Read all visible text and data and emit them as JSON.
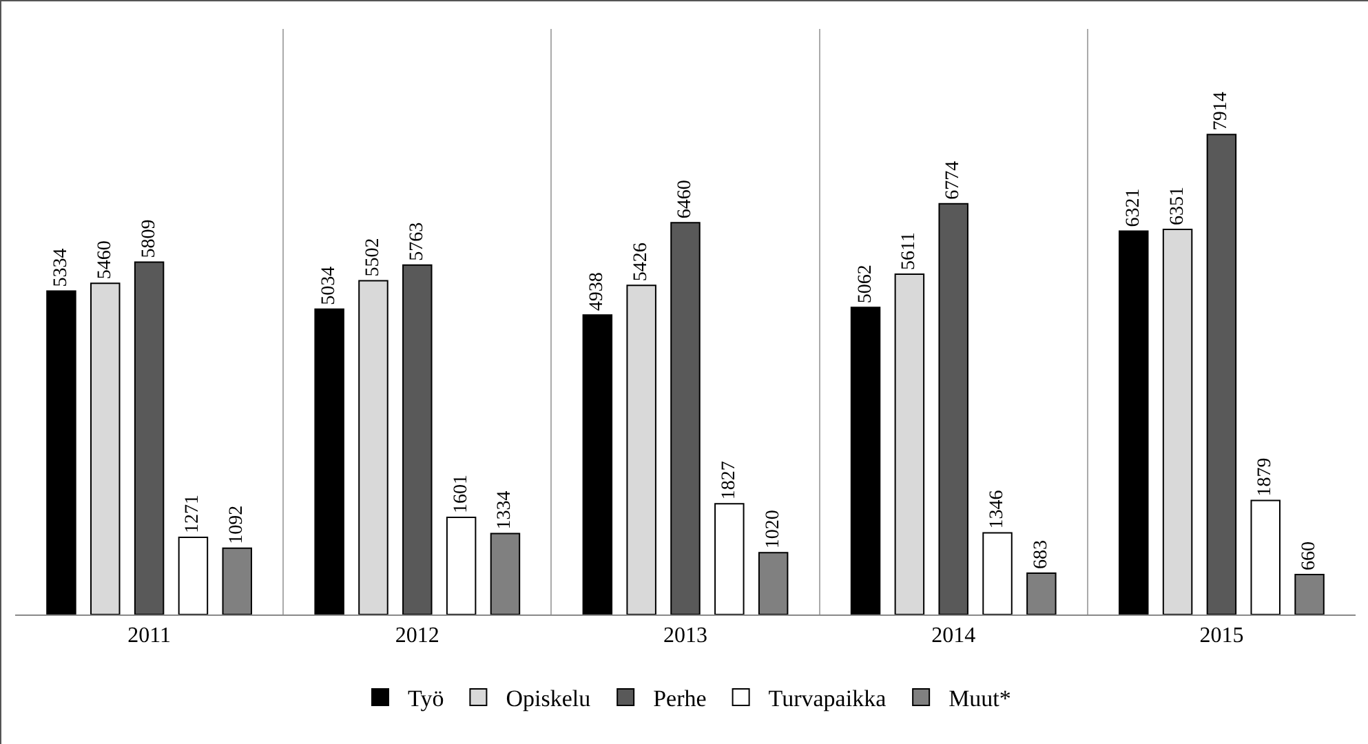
{
  "chart_data": {
    "type": "bar",
    "categories": [
      "2011",
      "2012",
      "2013",
      "2014",
      "2015"
    ],
    "series": [
      {
        "name": "Työ",
        "color": "#000000",
        "values": [
          5334,
          5034,
          4938,
          5062,
          6321
        ]
      },
      {
        "name": "Opiskelu",
        "color": "#d9d9d9",
        "values": [
          5460,
          5502,
          5426,
          5611,
          6351
        ]
      },
      {
        "name": "Perhe",
        "color": "#595959",
        "values": [
          5809,
          5763,
          6460,
          6774,
          7914
        ]
      },
      {
        "name": "Turvapaikka",
        "color": "#ffffff",
        "values": [
          1271,
          1601,
          1827,
          1346,
          1879
        ]
      },
      {
        "name": "Muut*",
        "color": "#808080",
        "values": [
          1092,
          1334,
          1020,
          683,
          660
        ]
      }
    ],
    "data_labels": true,
    "grid": "x",
    "legend": "bottom",
    "tick_labels": "x"
  }
}
